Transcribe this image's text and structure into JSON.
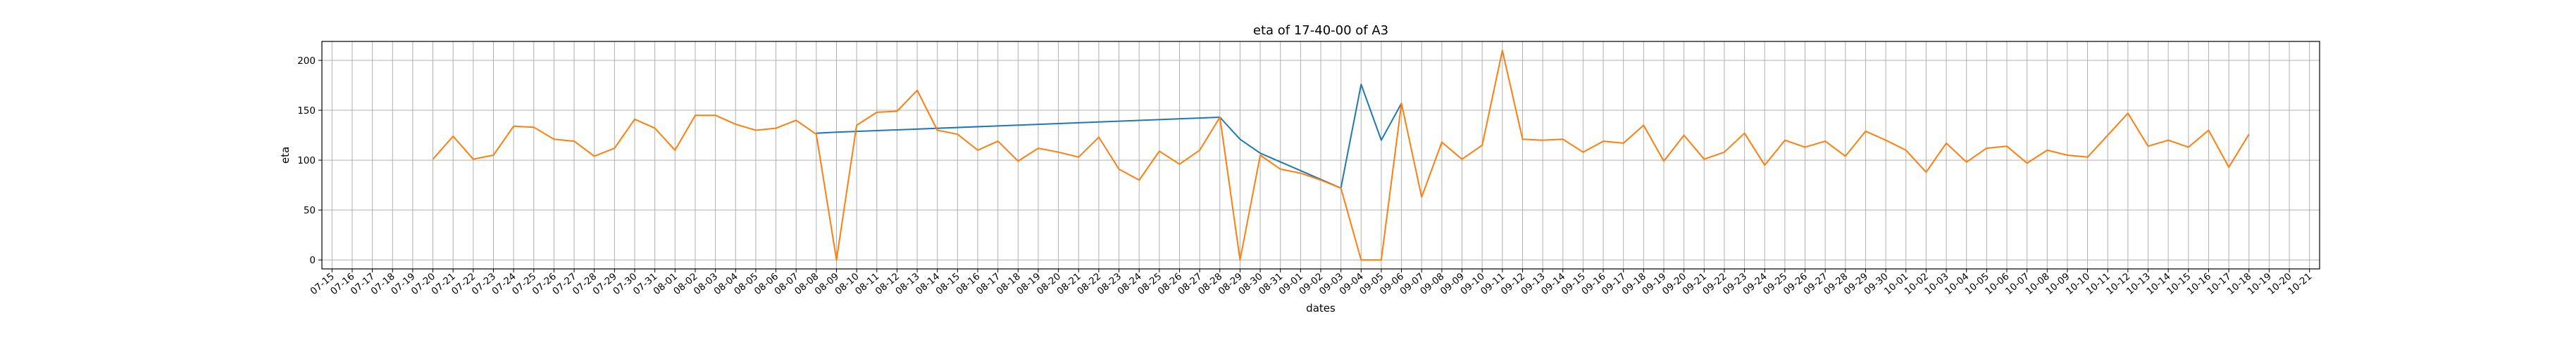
{
  "chart_data": {
    "type": "line",
    "title": "eta of 17-40-00 of A3",
    "xlabel": "dates",
    "ylabel": "eta",
    "ylim": [
      -9,
      219
    ],
    "y_ticks": [
      0,
      50,
      100,
      150,
      200
    ],
    "grid": true,
    "x_tick_labels": [
      "07-15",
      "07-16",
      "07-17",
      "07-18",
      "07-19",
      "07-20",
      "07-21",
      "07-22",
      "07-23",
      "07-24",
      "07-25",
      "07-26",
      "07-27",
      "07-28",
      "07-29",
      "07-30",
      "07-31",
      "08-01",
      "08-02",
      "08-03",
      "08-04",
      "08-05",
      "08-06",
      "08-07",
      "08-08",
      "08-09",
      "08-10",
      "08-11",
      "08-12",
      "08-13",
      "08-14",
      "08-15",
      "08-16",
      "08-17",
      "08-18",
      "08-19",
      "08-20",
      "08-21",
      "08-22",
      "08-23",
      "08-24",
      "08-25",
      "08-26",
      "08-27",
      "08-28",
      "08-29",
      "08-30",
      "08-31",
      "09-01",
      "09-02",
      "09-03",
      "09-04",
      "09-05",
      "09-06",
      "09-07",
      "09-08",
      "09-09",
      "09-10",
      "09-11",
      "09-12",
      "09-13",
      "09-14",
      "09-15",
      "09-16",
      "09-17",
      "09-18",
      "09-19",
      "09-20",
      "09-21",
      "09-22",
      "09-23",
      "09-24",
      "09-25",
      "09-26",
      "09-27",
      "09-28",
      "09-29",
      "09-30",
      "10-01",
      "10-02",
      "10-03",
      "10-04",
      "10-05",
      "10-06",
      "10-07",
      "10-08",
      "10-09",
      "10-10",
      "10-11",
      "10-12",
      "10-13",
      "10-14",
      "10-15",
      "10-16",
      "10-17",
      "10-18",
      "10-19",
      "10-20",
      "10-21"
    ],
    "series": [
      {
        "color": "#1f77b4",
        "points": [
          [
            24,
            127
          ],
          [
            25,
            128
          ],
          [
            44,
            143
          ],
          [
            45,
            121
          ],
          [
            46,
            107
          ],
          [
            50,
            72
          ],
          [
            51,
            176
          ],
          [
            52,
            120
          ],
          [
            53,
            157
          ]
        ]
      },
      {
        "color": "#ff7f0e",
        "points": [
          [
            5,
            101
          ],
          [
            6,
            124
          ],
          [
            7,
            101
          ],
          [
            8,
            105
          ],
          [
            9,
            134
          ],
          [
            10,
            133
          ],
          [
            11,
            121
          ],
          [
            12,
            119
          ],
          [
            13,
            104
          ],
          [
            14,
            112
          ],
          [
            15,
            141
          ],
          [
            16,
            132
          ],
          [
            17,
            110
          ],
          [
            18,
            145
          ],
          [
            19,
            145
          ],
          [
            20,
            136
          ],
          [
            21,
            130
          ],
          [
            22,
            132
          ],
          [
            23,
            140
          ],
          [
            24,
            126
          ],
          [
            25,
            0
          ],
          [
            26,
            135
          ],
          [
            27,
            148
          ],
          [
            28,
            149
          ],
          [
            29,
            170
          ],
          [
            30,
            130
          ],
          [
            31,
            126
          ],
          [
            32,
            110
          ],
          [
            33,
            119
          ],
          [
            34,
            99
          ],
          [
            35,
            112
          ],
          [
            36,
            108
          ],
          [
            37,
            103
          ],
          [
            38,
            123
          ],
          [
            39,
            91
          ],
          [
            40,
            80
          ],
          [
            41,
            109
          ],
          [
            42,
            96
          ],
          [
            43,
            110
          ],
          [
            44,
            143
          ],
          [
            45,
            0
          ],
          [
            46,
            105
          ],
          [
            47,
            91
          ],
          [
            48,
            87
          ],
          [
            49,
            80
          ],
          [
            50,
            72
          ],
          [
            51,
            0
          ],
          [
            52,
            0
          ],
          [
            53,
            157
          ],
          [
            54,
            63
          ],
          [
            55,
            118
          ],
          [
            56,
            101
          ],
          [
            57,
            115
          ],
          [
            58,
            210
          ],
          [
            59,
            121
          ],
          [
            60,
            120
          ],
          [
            61,
            121
          ],
          [
            62,
            108
          ],
          [
            63,
            119
          ],
          [
            64,
            117
          ],
          [
            65,
            135
          ],
          [
            66,
            99
          ],
          [
            67,
            125
          ],
          [
            68,
            101
          ],
          [
            69,
            108
          ],
          [
            70,
            127
          ],
          [
            71,
            95
          ],
          [
            72,
            120
          ],
          [
            73,
            113
          ],
          [
            74,
            119
          ],
          [
            75,
            104
          ],
          [
            76,
            129
          ],
          [
            77,
            120
          ],
          [
            78,
            110
          ],
          [
            79,
            88
          ],
          [
            80,
            117
          ],
          [
            81,
            98
          ],
          [
            82,
            112
          ],
          [
            83,
            114
          ],
          [
            84,
            97
          ],
          [
            85,
            110
          ],
          [
            86,
            105
          ],
          [
            87,
            103
          ],
          [
            88,
            125
          ],
          [
            89,
            147
          ],
          [
            90,
            114
          ],
          [
            91,
            120
          ],
          [
            92,
            113
          ],
          [
            93,
            130
          ],
          [
            94,
            93
          ],
          [
            95,
            126
          ]
        ]
      }
    ]
  }
}
